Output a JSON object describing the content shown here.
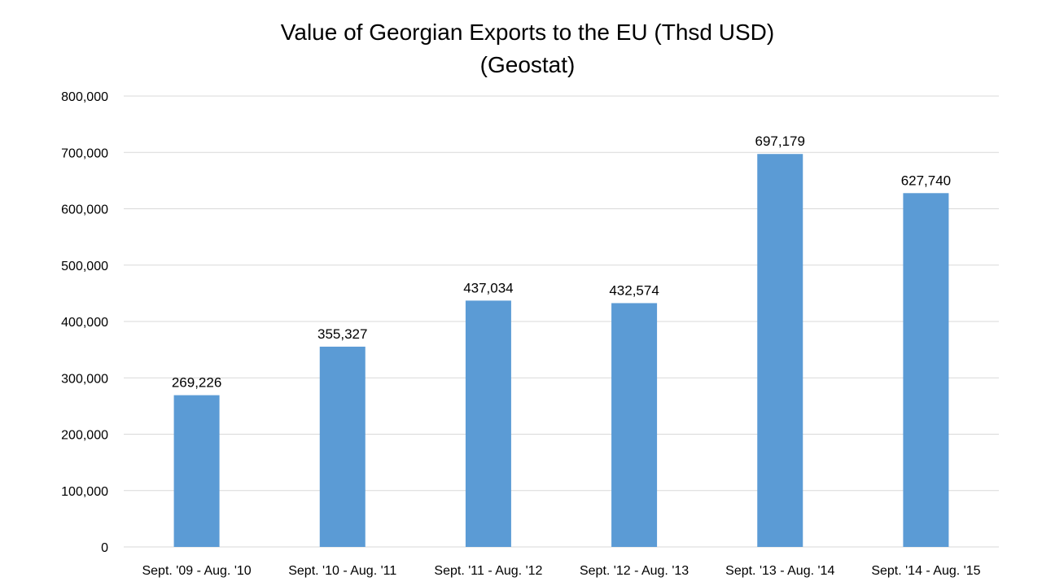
{
  "chart_data": {
    "type": "bar",
    "title": "Value of Georgian Exports to the EU (Thsd USD)",
    "subtitle": "(Geostat)",
    "categories": [
      "Sept. '09 - Aug. '10",
      "Sept. '10 - Aug. '11",
      "Sept. '11 - Aug. '12",
      "Sept. '12 - Aug. '13",
      "Sept. '13 - Aug. '14",
      "Sept. '14 - Aug. '15"
    ],
    "values": [
      269226,
      355327,
      437034,
      432574,
      697179,
      627740
    ],
    "data_labels": [
      "269,226",
      "355,327",
      "437,034",
      "432,574",
      "697,179",
      "627,740"
    ],
    "yticks": [
      0,
      100000,
      200000,
      300000,
      400000,
      500000,
      600000,
      700000,
      800000
    ],
    "ytick_labels": [
      "0",
      "100,000",
      "200,000",
      "300,000",
      "400,000",
      "500,000",
      "600,000",
      "700,000",
      "800,000"
    ],
    "ylim": [
      0,
      800000
    ],
    "xlabel": "",
    "ylabel": "",
    "grid": true,
    "legend": "none",
    "bar_color": "#5b9bd5"
  }
}
